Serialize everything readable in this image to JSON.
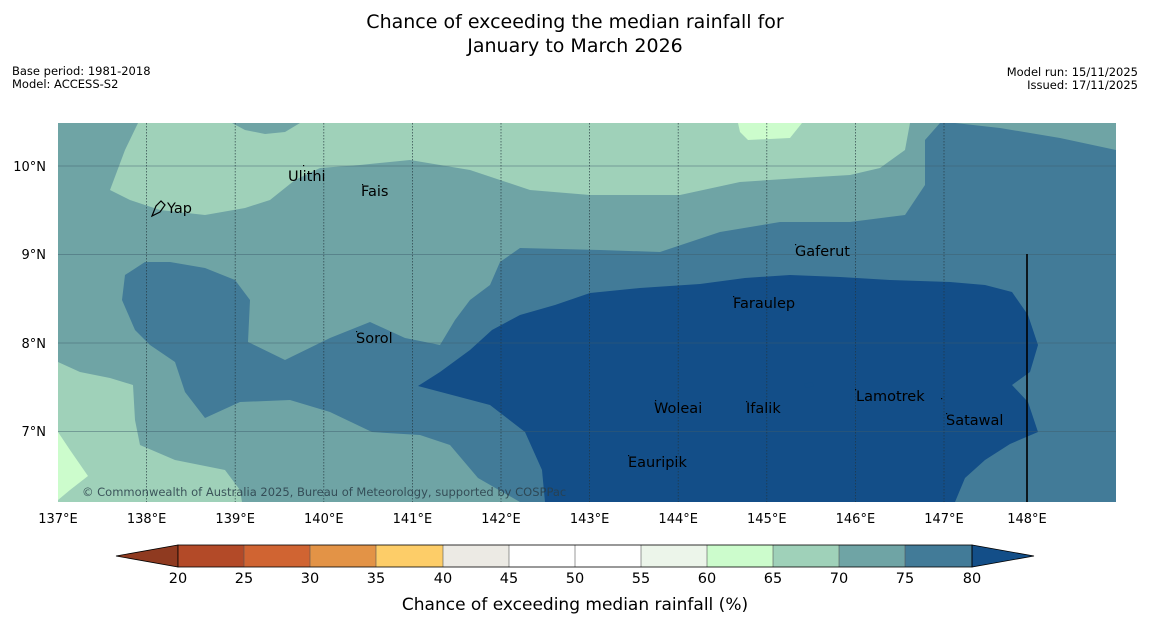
{
  "title": {
    "line1": "Chance of exceeding the median rainfall for",
    "line2": "January to March 2026"
  },
  "meta": {
    "base_period": "Base period: 1981-2018",
    "model": "Model: ACCESS-S2",
    "model_run": "Model run: 15/11/2025",
    "issued": "Issued: 17/11/2025"
  },
  "copyright": "© Commonwealth of Australia 2025, Bureau of Meteorology, supported by COSPPac",
  "axes": {
    "lat_labels": [
      "10°N",
      "9°N",
      "8°N",
      "7°N"
    ],
    "lon_labels": [
      "137°E",
      "138°E",
      "139°E",
      "140°E",
      "141°E",
      "142°E",
      "143°E",
      "144°E",
      "145°E",
      "146°E",
      "147°E",
      "148°E"
    ]
  },
  "places": [
    {
      "name": "Yap"
    },
    {
      "name": "Ulithi"
    },
    {
      "name": "Fais"
    },
    {
      "name": "Gaferut"
    },
    {
      "name": "Faraulep"
    },
    {
      "name": "Sorol"
    },
    {
      "name": "Woleai"
    },
    {
      "name": "Ifalik"
    },
    {
      "name": "Lamotrek"
    },
    {
      "name": "Satawal"
    },
    {
      "name": "Eauripik"
    }
  ],
  "colorbar": {
    "ticks": [
      "20",
      "25",
      "30",
      "35",
      "40",
      "45",
      "50",
      "55",
      "60",
      "65",
      "70",
      "75",
      "80"
    ],
    "label": "Chance of exceeding median rainfall (%)",
    "colors": {
      "below_20": "#8f3a20",
      "c20_25": "#b34a28",
      "c25_30": "#d06432",
      "c30_35": "#e39346",
      "c35_40": "#fdcd68",
      "c40_45": "#eceae4",
      "c45_50": "#ffffff",
      "c50_55": "#ffffff",
      "c55_60": "#ecf5ea",
      "c60_65": "#ccfccc",
      "c65_70": "#9fd1b9",
      "c70_75": "#6fa4a5",
      "c75_80": "#427b98",
      "above_80": "#134e88"
    }
  }
}
